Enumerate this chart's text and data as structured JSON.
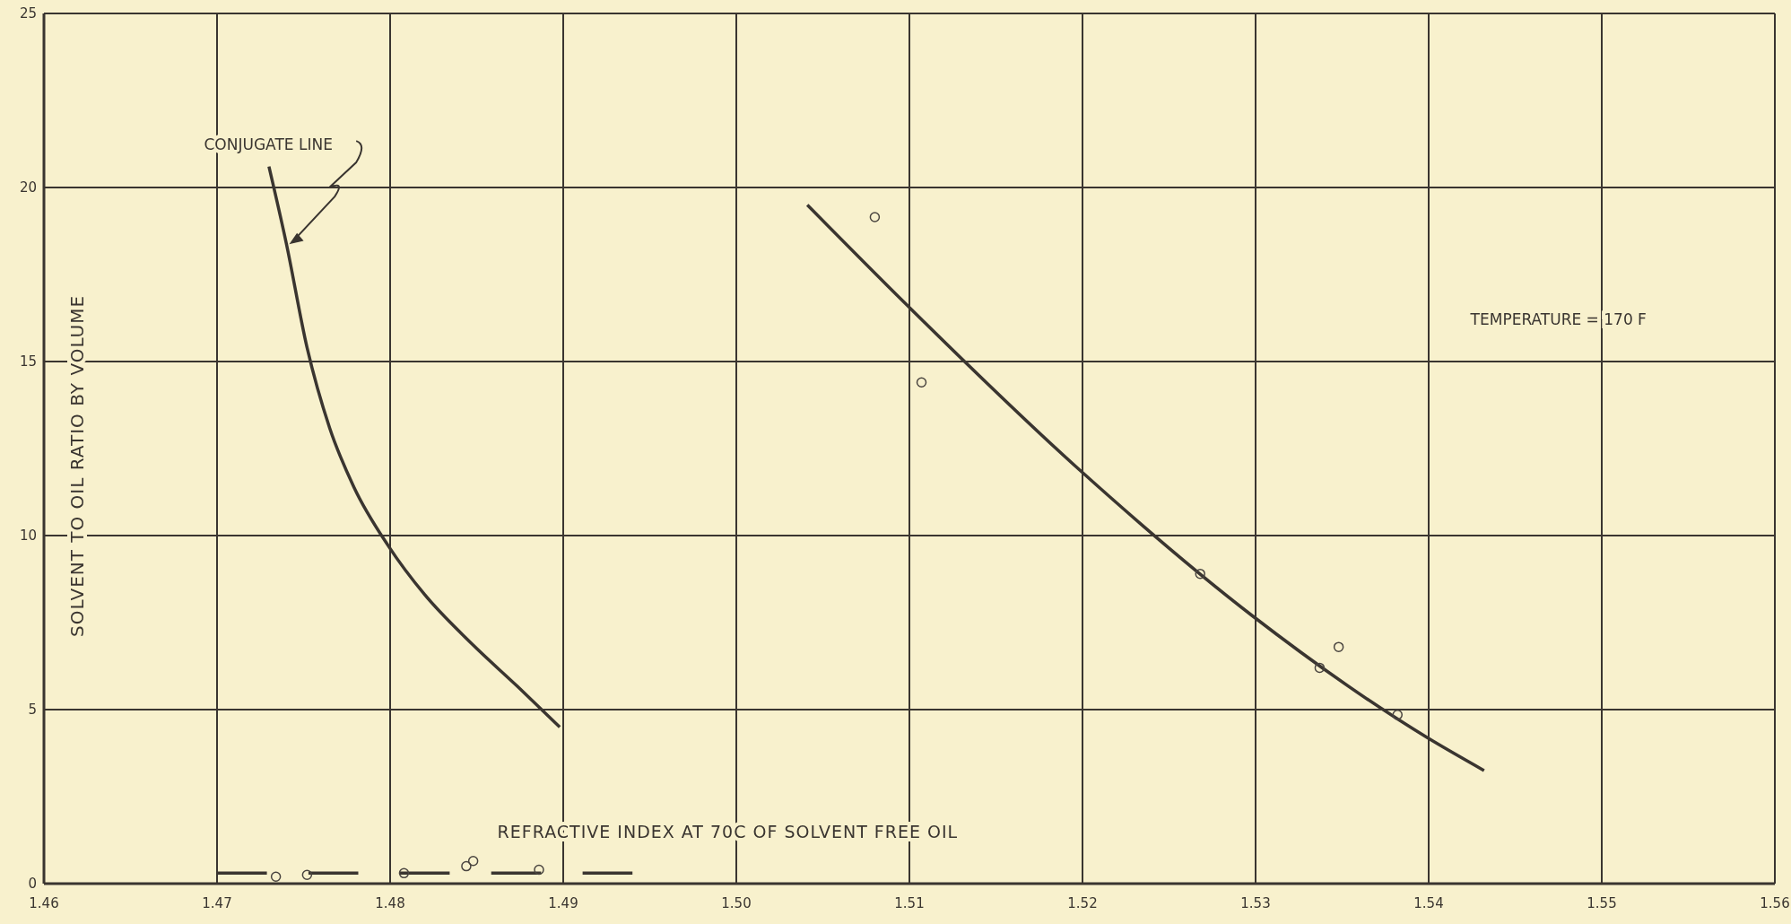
{
  "chart_data": {
    "type": "line",
    "xlabel": "REFRACTIVE INDEX AT 70C OF SOLVENT FREE OIL",
    "ylabel": "SOLVENT TO OIL RATIO BY VOLUME",
    "xlim": [
      1.46,
      1.56
    ],
    "xticks": [
      1.46,
      1.47,
      1.48,
      1.49,
      {
        "value": 1.5,
        "label": "1.50"
      },
      1.51,
      1.52,
      1.53,
      1.54,
      1.55,
      1.56
    ],
    "ylim": [
      0,
      25
    ],
    "yticks": [
      0,
      5,
      10,
      15,
      20,
      25
    ],
    "grid": true,
    "annotations": [
      "CONJUGATE LINE",
      "TEMPERATURE = 170 F"
    ],
    "series": [
      {
        "color": "#3a3530",
        "x": [
          1.473,
          1.474,
          1.4752,
          1.4765,
          1.4779,
          1.4799,
          1.482,
          1.4847,
          1.4875,
          1.4898
        ],
        "values": [
          20.6,
          18.4,
          15.4,
          13.1,
          11.4,
          9.7,
          8.3,
          6.9,
          5.6,
          4.5
        ]
      },
      {
        "color": "#3a3530",
        "x": [
          1.5041,
          1.5097,
          1.5198,
          1.5298,
          1.5399,
          1.5432
        ],
        "values": [
          19.5,
          16.7,
          11.9,
          7.7,
          4.2,
          3.25
        ]
      },
      {
        "color": "#3a3530",
        "line_style": "dashed",
        "x": [
          1.47,
          1.494
        ],
        "values": [
          0.3,
          0.3
        ]
      },
      {
        "type": "scatter",
        "color": "#4a4540",
        "marker": "circle",
        "x": [
          1.4734,
          1.4752,
          1.4808,
          1.4844,
          1.4848,
          1.4886,
          1.508,
          1.5107,
          1.5268,
          1.5337,
          1.5348,
          1.5382
        ],
        "values": [
          0.2,
          0.25,
          0.3,
          0.5,
          0.65,
          0.4,
          19.15,
          14.4,
          8.9,
          6.2,
          6.8,
          4.85
        ]
      }
    ]
  }
}
